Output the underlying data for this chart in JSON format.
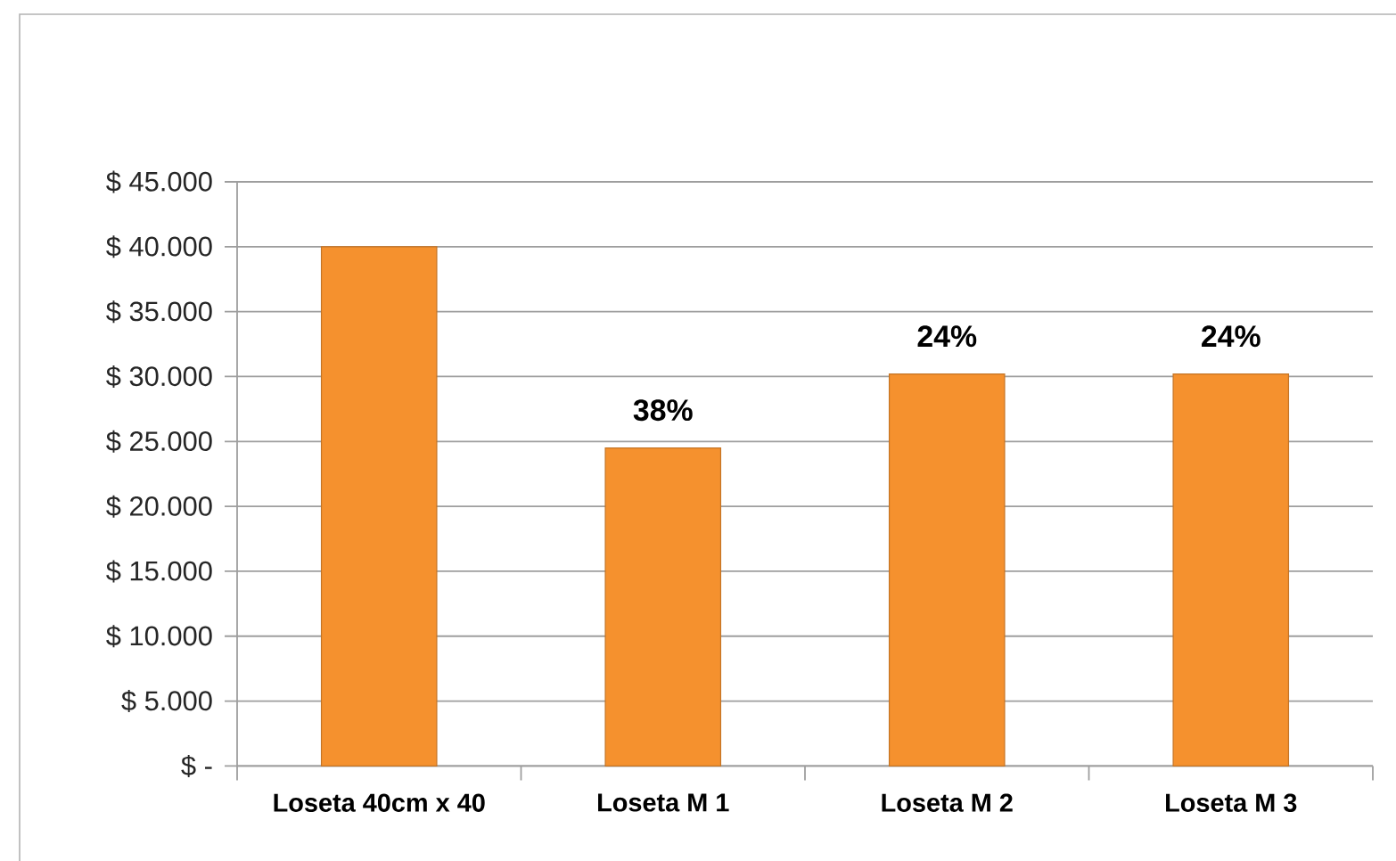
{
  "chart_data": {
    "type": "bar",
    "categories": [
      "Loseta 40cm x 40",
      "Loseta M 1",
      "Loseta M 2",
      "Loseta M 3"
    ],
    "values": [
      40000,
      24500,
      30200,
      30200
    ],
    "color": "#f5912e",
    "ylim": [
      0,
      45000
    ],
    "yticks": [
      {
        "value": 0,
        "label": "$ -"
      },
      {
        "value": 5000,
        "label": "$ 5.000"
      },
      {
        "value": 10000,
        "label": "$ 10.000"
      },
      {
        "value": 15000,
        "label": "$ 15.000"
      },
      {
        "value": 20000,
        "label": "$ 20.000"
      },
      {
        "value": 25000,
        "label": "$ 25.000"
      },
      {
        "value": 30000,
        "label": "$ 30.000"
      },
      {
        "value": 35000,
        "label": "$ 35.000"
      },
      {
        "value": 40000,
        "label": "$ 40.000"
      },
      {
        "value": 45000,
        "label": "$ 45.000"
      }
    ],
    "grid": "y",
    "annotations": [
      {
        "text": "38%",
        "x": "Loseta M 1",
        "y": 24500
      },
      {
        "text": "24%",
        "x": "Loseta M 2",
        "y": 30200
      },
      {
        "text": "24%",
        "x": "Loseta M 3",
        "y": 30200
      }
    ]
  }
}
